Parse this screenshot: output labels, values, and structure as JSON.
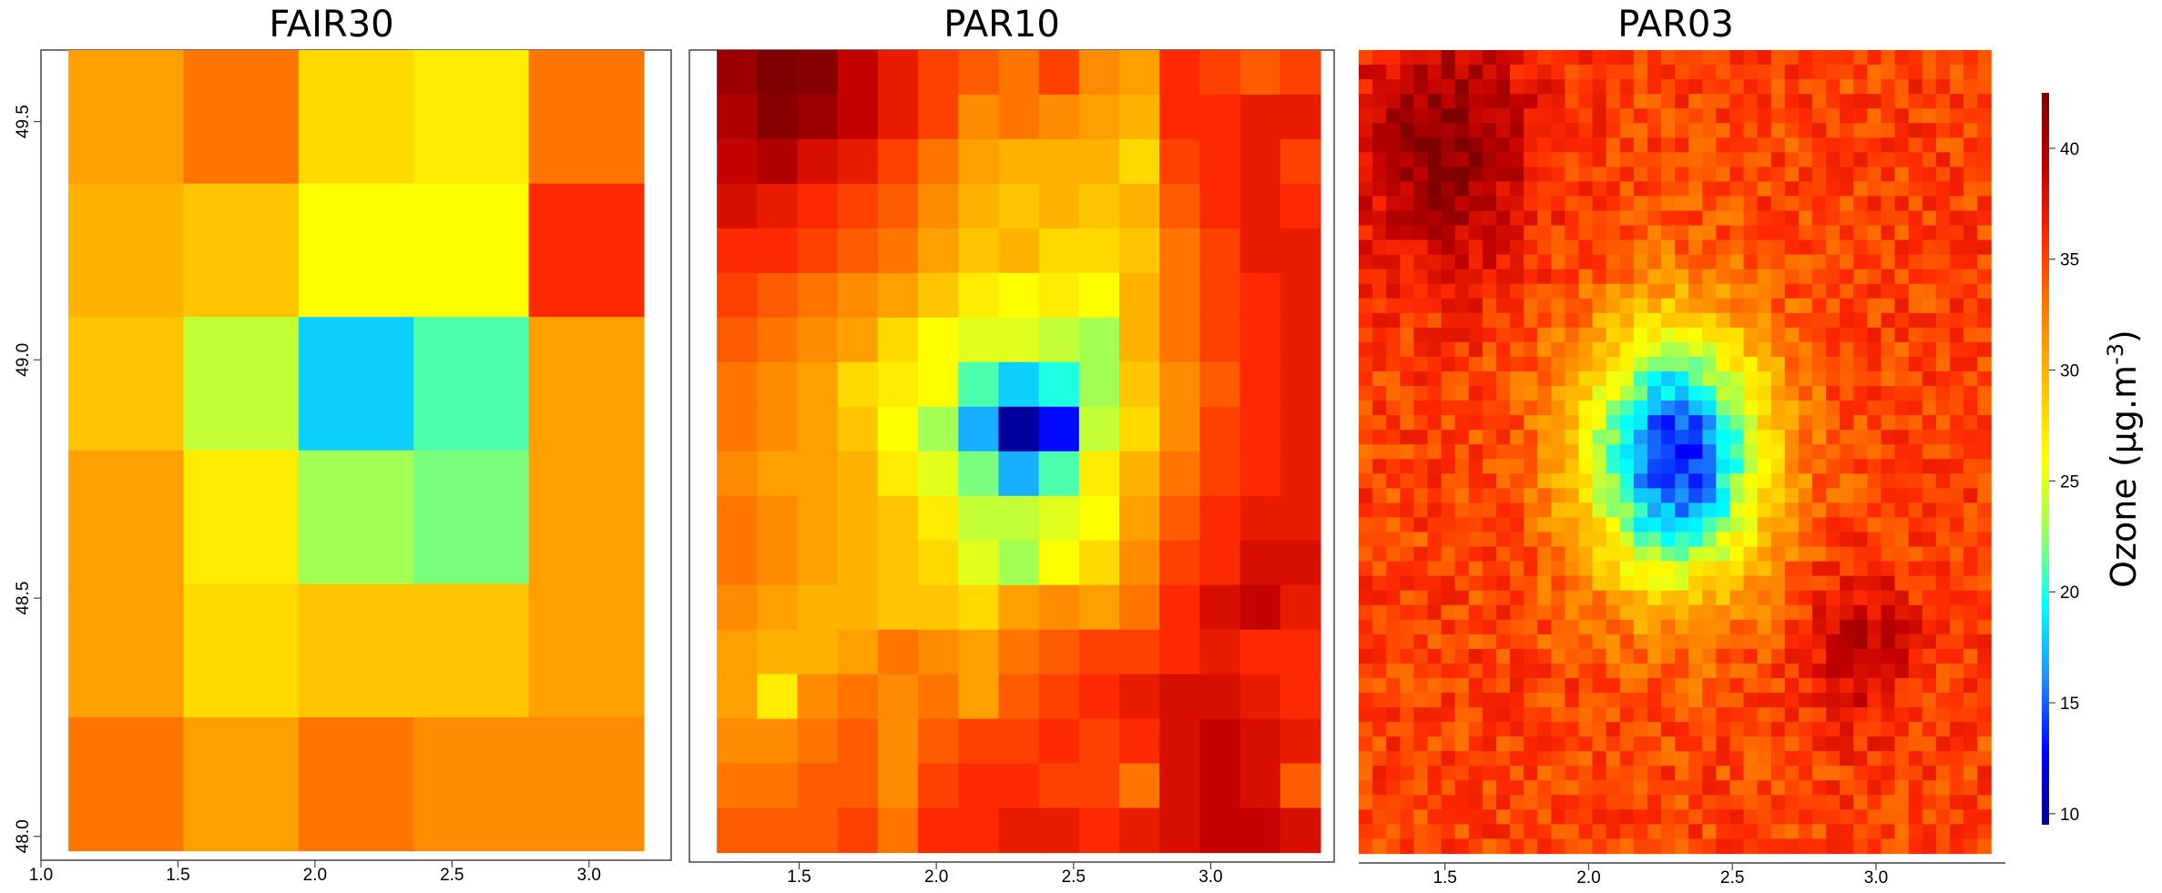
{
  "chart_data": {
    "type": "heatmap",
    "panels": [
      {
        "title": "FAIR30",
        "x_ticks": [
          "1.0",
          "1.5",
          "2.0",
          "2.5",
          "3.0"
        ],
        "y_ticks": [
          "48.0",
          "48.5",
          "49.0",
          "49.5"
        ],
        "x_range": [
          1.0,
          3.3
        ],
        "y_range": [
          47.95,
          49.65
        ],
        "cell_extent": {
          "x": [
            1.1,
            3.2
          ],
          "y": [
            47.97,
            49.65
          ]
        },
        "grid": [
          [
            31,
            33,
            28,
            27,
            33
          ],
          [
            30,
            29,
            26,
            26,
            36
          ],
          [
            29,
            24,
            18,
            21,
            31
          ],
          [
            31,
            27,
            23,
            22,
            31
          ],
          [
            31,
            28,
            29,
            29,
            31
          ],
          [
            33,
            31,
            33,
            32,
            32
          ]
        ]
      },
      {
        "title": "PAR10",
        "x_ticks": [
          "1.5",
          "2.0",
          "2.5",
          "3.0"
        ],
        "y_ticks": [],
        "x_range": [
          1.1,
          3.45
        ],
        "y_range": [
          47.95,
          49.65
        ],
        "cell_extent": {
          "x": [
            1.2,
            3.4
          ],
          "y": [
            47.97,
            49.65
          ]
        },
        "grid": [
          [
            41,
            43,
            42,
            39,
            37,
            35,
            34,
            33,
            35,
            32,
            31,
            36,
            35,
            34,
            35
          ],
          [
            40,
            42,
            41,
            39,
            37,
            35,
            32,
            33,
            32,
            31,
            30,
            36,
            36,
            37,
            37
          ],
          [
            39,
            40,
            38,
            37,
            35,
            33,
            31,
            30,
            30,
            30,
            28,
            35,
            36,
            37,
            35
          ],
          [
            38,
            37,
            36,
            35,
            34,
            32,
            30,
            29,
            30,
            29,
            30,
            34,
            36,
            37,
            36
          ],
          [
            36,
            36,
            35,
            34,
            33,
            31,
            29,
            30,
            28,
            28,
            29,
            33,
            35,
            37,
            37
          ],
          [
            35,
            34,
            33,
            32,
            31,
            29,
            27,
            26,
            27,
            26,
            30,
            33,
            35,
            36,
            37
          ],
          [
            34,
            33,
            32,
            31,
            28,
            26,
            25,
            25,
            24,
            23,
            30,
            33,
            35,
            36,
            37
          ],
          [
            33,
            32,
            31,
            28,
            27,
            26,
            21,
            18,
            20,
            23,
            29,
            32,
            34,
            36,
            37
          ],
          [
            33,
            32,
            31,
            29,
            26,
            23,
            17,
            10,
            13,
            24,
            28,
            32,
            35,
            36,
            37
          ],
          [
            32,
            31,
            31,
            30,
            27,
            25,
            22,
            17,
            21,
            27,
            30,
            33,
            35,
            36,
            37
          ],
          [
            33,
            32,
            31,
            30,
            29,
            27,
            24,
            24,
            25,
            26,
            31,
            34,
            36,
            37,
            37
          ],
          [
            33,
            32,
            31,
            30,
            29,
            28,
            25,
            23,
            26,
            28,
            32,
            35,
            36,
            38,
            38
          ],
          [
            32,
            31,
            30,
            30,
            29,
            29,
            28,
            31,
            32,
            31,
            33,
            36,
            38,
            39,
            37
          ],
          [
            31,
            30,
            30,
            31,
            33,
            32,
            31,
            33,
            34,
            35,
            35,
            36,
            37,
            36,
            36
          ],
          [
            31,
            27,
            32,
            33,
            32,
            33,
            31,
            34,
            35,
            36,
            37,
            38,
            38,
            37,
            36
          ],
          [
            32,
            32,
            33,
            34,
            32,
            34,
            35,
            35,
            36,
            35,
            36,
            38,
            39,
            38,
            37
          ],
          [
            33,
            33,
            34,
            34,
            32,
            35,
            36,
            36,
            35,
            35,
            33,
            38,
            39,
            38,
            34
          ],
          [
            34,
            34,
            34,
            35,
            33,
            36,
            36,
            37,
            37,
            36,
            37,
            38,
            39,
            39,
            38
          ]
        ]
      },
      {
        "title": "PAR03",
        "x_ticks": [
          "1.5",
          "2.0",
          "2.5",
          "3.0"
        ],
        "y_ticks": [],
        "x_range": [
          1.2,
          3.45
        ],
        "y_range": [
          47.95,
          49.65
        ],
        "cell_extent": {
          "x": [
            1.2,
            3.4
          ],
          "y": [
            47.97,
            49.65
          ]
        },
        "hotspots": [
          {
            "x": 1.5,
            "y": 49.45,
            "value": 42,
            "radius": 0.38
          },
          {
            "x": 2.3,
            "y": 48.8,
            "value": 13,
            "radius": 0.4
          },
          {
            "x": 2.95,
            "y": 48.4,
            "value": 39,
            "radius": 0.25
          }
        ],
        "background_value": 35
      }
    ],
    "colorbar": {
      "label": "Ozone (μg.m",
      "label_superscript": "-3",
      "label_suffix": ")",
      "ticks": [
        10,
        15,
        20,
        25,
        30,
        35,
        40
      ],
      "range": [
        9.5,
        42.5
      ],
      "colors": [
        "#00008b",
        "#0000ff",
        "#1e90ff",
        "#00ffff",
        "#9aff5a",
        "#ffff00",
        "#ffc000",
        "#ff7f00",
        "#ff2a00",
        "#c00000",
        "#7f0000"
      ]
    }
  }
}
